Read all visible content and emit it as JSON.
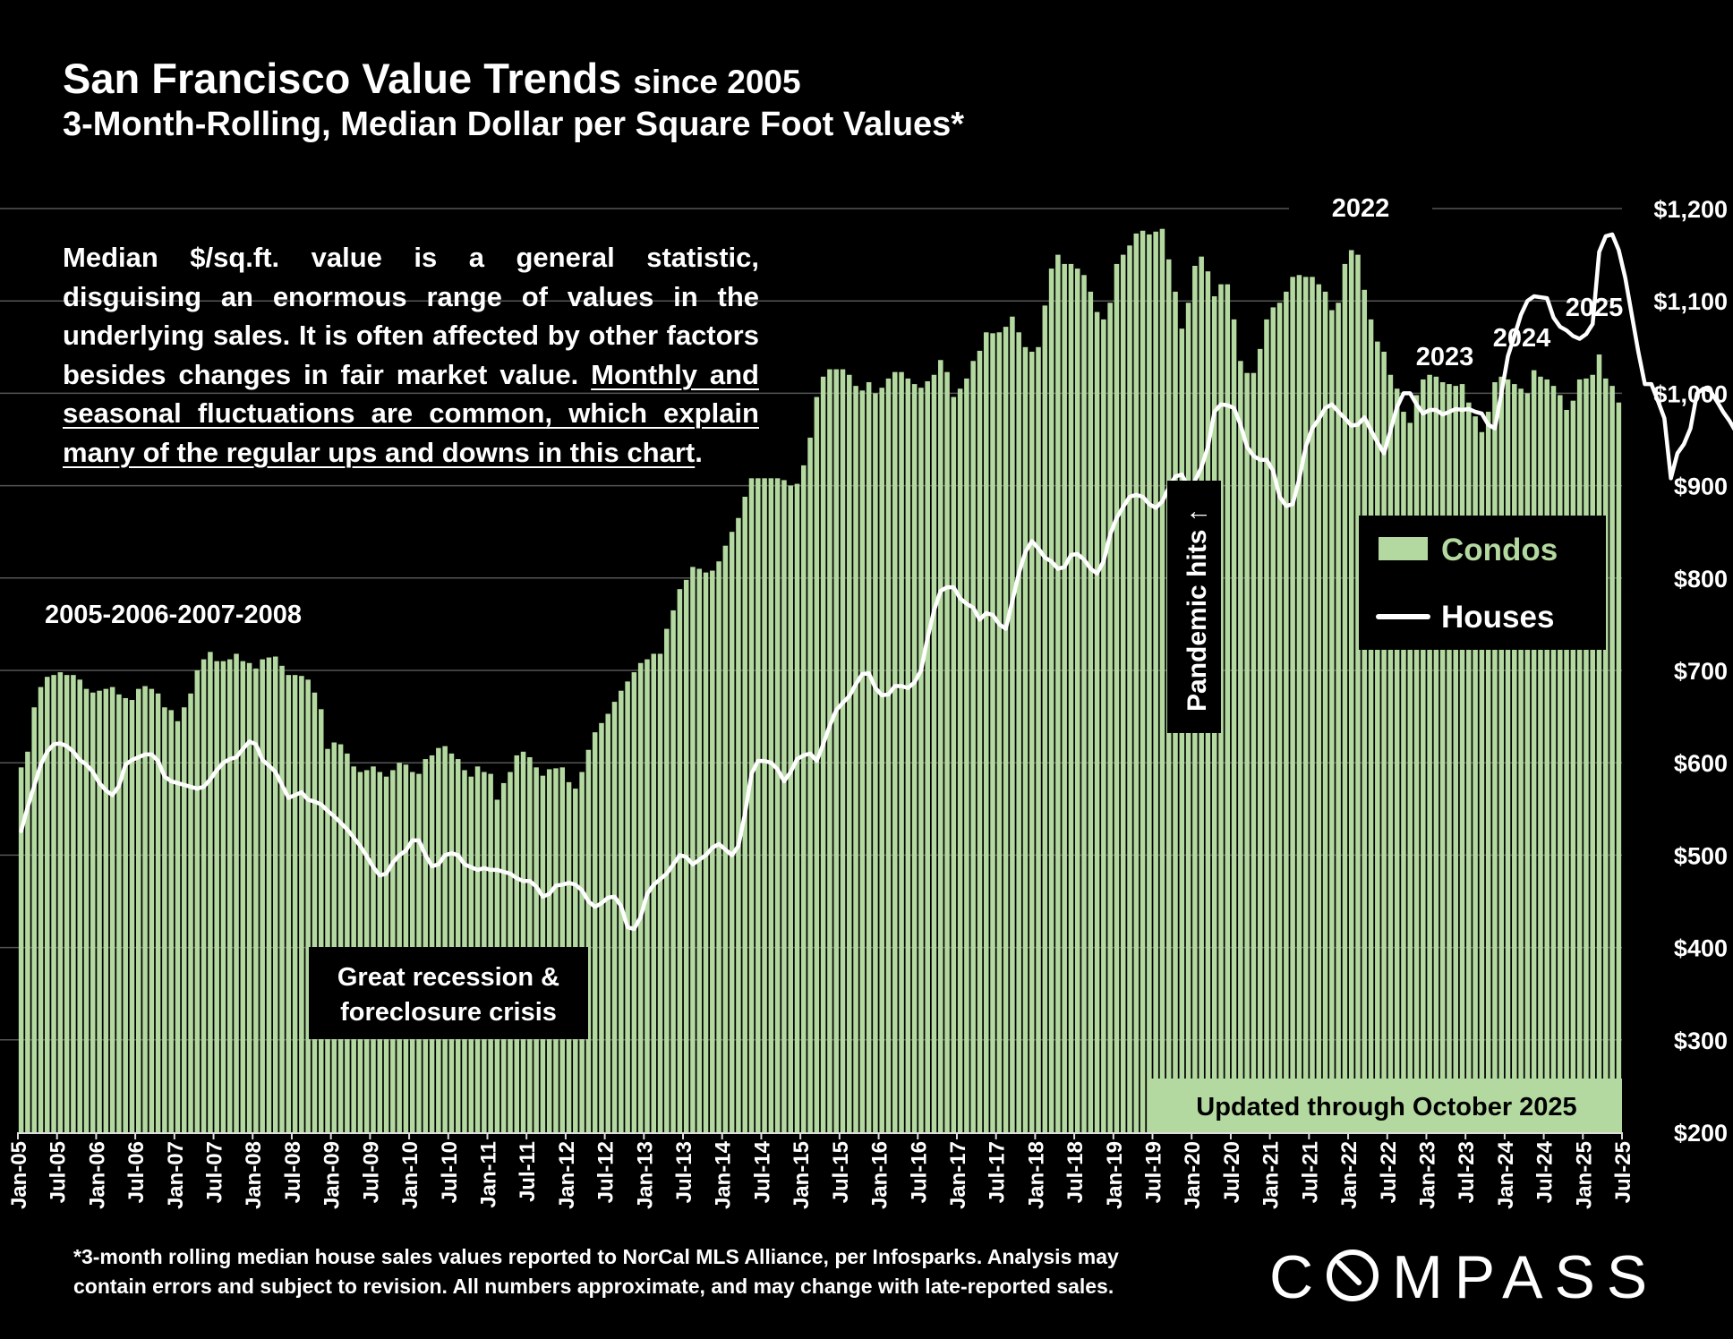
{
  "header": {
    "title": "San Francisco Value Trends",
    "title_suffix": "since 2005",
    "subtitle": "3-Month-Rolling, Median Dollar per Square Foot Values*"
  },
  "note": {
    "plain": "Median $/sq.ft. value is a general statistic, disguising an enormous range of values in the underlying sales. It is often affected by other factors besides changes in fair market value.",
    "underlined": "Monthly and seasonal fluctuations are common, which explain many of the regular ups and downs in this chart",
    "end": "."
  },
  "footnote": {
    "line1": "*3-month rolling median house sales values reported to NorCal MLS Alliance, per Infosparks. Analysis may",
    "line2": "contain errors and subject to revision. All numbers approximate, and may change with late-reported sales."
  },
  "logo": {
    "text": "COMPASS",
    "icon": "compass-o-icon"
  },
  "colors": {
    "condos": "#b4d9a0",
    "houses": "#ffffff",
    "background": "#000000"
  },
  "chart_data": {
    "type": "bar",
    "title": "San Francisco Value Trends since 2005",
    "ylim": [
      200,
      1200
    ],
    "y_axis_position": "right",
    "yticks": [
      200,
      300,
      400,
      500,
      600,
      700,
      800,
      900,
      1000,
      1100,
      1200
    ],
    "ytick_labels": [
      "$200",
      "$300",
      "$400",
      "$500",
      "$600",
      "$700",
      "$800",
      "$900",
      "$1,000",
      "$1,100",
      "$1,200"
    ],
    "x_start": "Jan-05",
    "x_end": "Oct-25",
    "xtick_labels": [
      "Jan-05",
      "Jul-05",
      "Jan-06",
      "Jul-06",
      "Jan-07",
      "Jul-07",
      "Jan-08",
      "Jul-08",
      "Jan-09",
      "Jul-09",
      "Jan-10",
      "Jul-10",
      "Jan-11",
      "Jul-11",
      "Jan-12",
      "Jul-12",
      "Jan-13",
      "Jul-13",
      "Jan-14",
      "Jul-14",
      "Jan-15",
      "Jul-15",
      "Jan-16",
      "Jul-16",
      "Jan-17",
      "Jul-17",
      "Jan-18",
      "Jul-18",
      "Jan-19",
      "Jul-19",
      "Jan-20",
      "Jul-20",
      "Jan-21",
      "Jul-21",
      "Jan-22",
      "Jul-22",
      "Jan-23",
      "Jul-23",
      "Jan-24",
      "Jul-24",
      "Jan-25",
      "Jul-25"
    ],
    "grid": true,
    "legend": {
      "placement": "right",
      "entries": [
        "Condos",
        "Houses"
      ]
    },
    "series": [
      {
        "name": "Condos",
        "type": "bar",
        "values": [
          595,
          612,
          660,
          682,
          693,
          695,
          698,
          695,
          695,
          690,
          680,
          676,
          678,
          680,
          682,
          674,
          670,
          668,
          680,
          683,
          680,
          675,
          660,
          657,
          645,
          660,
          675,
          700,
          712,
          720,
          710,
          710,
          712,
          718,
          710,
          708,
          702,
          712,
          714,
          715,
          705,
          695,
          695,
          694,
          690,
          676,
          658,
          615,
          622,
          620,
          610,
          596,
          590,
          592,
          596,
          590,
          585,
          592,
          600,
          598,
          590,
          588,
          604,
          608,
          616,
          618,
          610,
          604,
          592,
          585,
          596,
          590,
          588,
          560,
          578,
          590,
          608,
          612,
          606,
          595,
          586,
          593,
          594,
          595,
          579,
          572,
          590,
          614,
          633,
          643,
          653,
          666,
          678,
          688,
          698,
          708,
          712,
          718,
          718,
          745,
          765,
          788,
          798,
          812,
          810,
          806,
          808,
          818,
          835,
          850,
          865,
          888,
          908,
          908,
          908,
          908,
          908,
          906,
          900,
          902,
          922,
          952,
          996,
          1018,
          1026,
          1026,
          1026,
          1020,
          1008,
          1003,
          1012,
          1000,
          1006,
          1016,
          1023,
          1023,
          1016,
          1010,
          1006,
          1013,
          1020,
          1036,
          1023,
          996,
          1005,
          1016,
          1035,
          1046,
          1066,
          1065,
          1066,
          1072,
          1083,
          1066,
          1050,
          1045,
          1050,
          1095,
          1135,
          1150,
          1140,
          1140,
          1135,
          1128,
          1110,
          1088,
          1080,
          1098,
          1140,
          1150,
          1160,
          1173,
          1176,
          1172,
          1175,
          1178,
          1145,
          1110,
          1070,
          1098,
          1138,
          1148,
          1132,
          1105,
          1118,
          1118,
          1080,
          1035,
          1022,
          1022,
          1048,
          1080,
          1093,
          1098,
          1110,
          1126,
          1128,
          1126,
          1126,
          1118,
          1110,
          1090,
          1098,
          1140,
          1155,
          1150,
          1112,
          1080,
          1056,
          1045,
          1020,
          1005,
          980,
          968,
          998,
          1015,
          1020,
          1018,
          1012,
          1010,
          1008,
          1010,
          990,
          975,
          958,
          980,
          1012,
          1018,
          1015,
          1010,
          1005,
          1000,
          1025,
          1018,
          1015,
          1008,
          998,
          982,
          992,
          1015,
          1016,
          1020,
          1042,
          1016,
          1008,
          990
        ]
      },
      {
        "name": "Houses",
        "type": "line",
        "values": [
          526,
          552,
          575,
          598,
          612,
          620,
          621,
          618,
          612,
          603,
          598,
          590,
          578,
          570,
          565,
          575,
          598,
          603,
          606,
          609,
          609,
          602,
          585,
          580,
          578,
          576,
          574,
          572,
          574,
          582,
          592,
          600,
          604,
          606,
          615,
          623,
          620,
          603,
          597,
          590,
          576,
          562,
          565,
          568,
          560,
          558,
          555,
          548,
          542,
          535,
          528,
          519,
          510,
          499,
          487,
          478,
          480,
          492,
          500,
          505,
          516,
          516,
          500,
          488,
          490,
          500,
          502,
          500,
          490,
          487,
          484,
          486,
          484,
          484,
          482,
          480,
          475,
          472,
          472,
          466,
          455,
          458,
          467,
          468,
          470,
          468,
          462,
          450,
          444,
          448,
          454,
          455,
          445,
          422,
          420,
          433,
          458,
          468,
          474,
          480,
          490,
          500,
          498,
          490,
          495,
          500,
          508,
          512,
          506,
          500,
          510,
          545,
          588,
          602,
          602,
          600,
          593,
          580,
          590,
          604,
          608,
          610,
          602,
          620,
          640,
          657,
          665,
          672,
          685,
          696,
          697,
          681,
          673,
          674,
          683,
          683,
          681,
          687,
          700,
          735,
          765,
          786,
          790,
          790,
          778,
          772,
          768,
          755,
          762,
          760,
          750,
          745,
          775,
          805,
          828,
          840,
          832,
          822,
          818,
          810,
          812,
          825,
          826,
          820,
          810,
          805,
          818,
          847,
          865,
          877,
          888,
          890,
          888,
          880,
          876,
          883,
          898,
          910,
          912,
          898,
          905,
          920,
          942,
          980,
          988,
          987,
          984,
          966,
          942,
          932,
          928,
          928,
          916,
          888,
          878,
          880,
          907,
          942,
          962,
          972,
          984,
          988,
          980,
          973,
          965,
          966,
          974,
          960,
          947,
          935,
          960,
          985,
          1000,
          1000,
          988,
          978,
          982,
          982,
          977,
          980,
          983,
          982,
          983,
          980,
          978,
          966,
          962,
          1000,
          1040,
          1062,
          1085,
          1100,
          1105,
          1104,
          1103,
          1082,
          1072,
          1068,
          1062,
          1059,
          1064,
          1075,
          1153,
          1170,
          1172,
          1155,
          1125,
          1085,
          1045,
          1010,
          1010,
          992,
          973,
          908,
          935,
          945,
          962,
          1000,
          1005,
          1003,
          992,
          980,
          970,
          958,
          960,
          953,
          948,
          945,
          928,
          955,
          988,
          1025,
          1025,
          1032,
          1030,
          1022,
          1012,
          995,
          985,
          990,
          978,
          968,
          952,
          930,
          985,
          1030,
          1060,
          1066,
          1045,
          1010,
          1005,
          985,
          985,
          1020
        ]
      }
    ],
    "annotations": [
      {
        "id": "years-2005-2008",
        "text": "2005-2006-2007-2008"
      },
      {
        "id": "recession",
        "text": "Great recession &\nforeclosure crisis"
      },
      {
        "id": "pandemic",
        "text": "Pandemic hits",
        "x": "Apr-20"
      },
      {
        "id": "peak-2022",
        "text": "2022"
      },
      {
        "id": "peak-2023",
        "text": "2023"
      },
      {
        "id": "peak-2024",
        "text": "2024"
      },
      {
        "id": "peak-2025",
        "text": "2025"
      },
      {
        "id": "updated",
        "text": "Updated through October 2025"
      }
    ]
  }
}
